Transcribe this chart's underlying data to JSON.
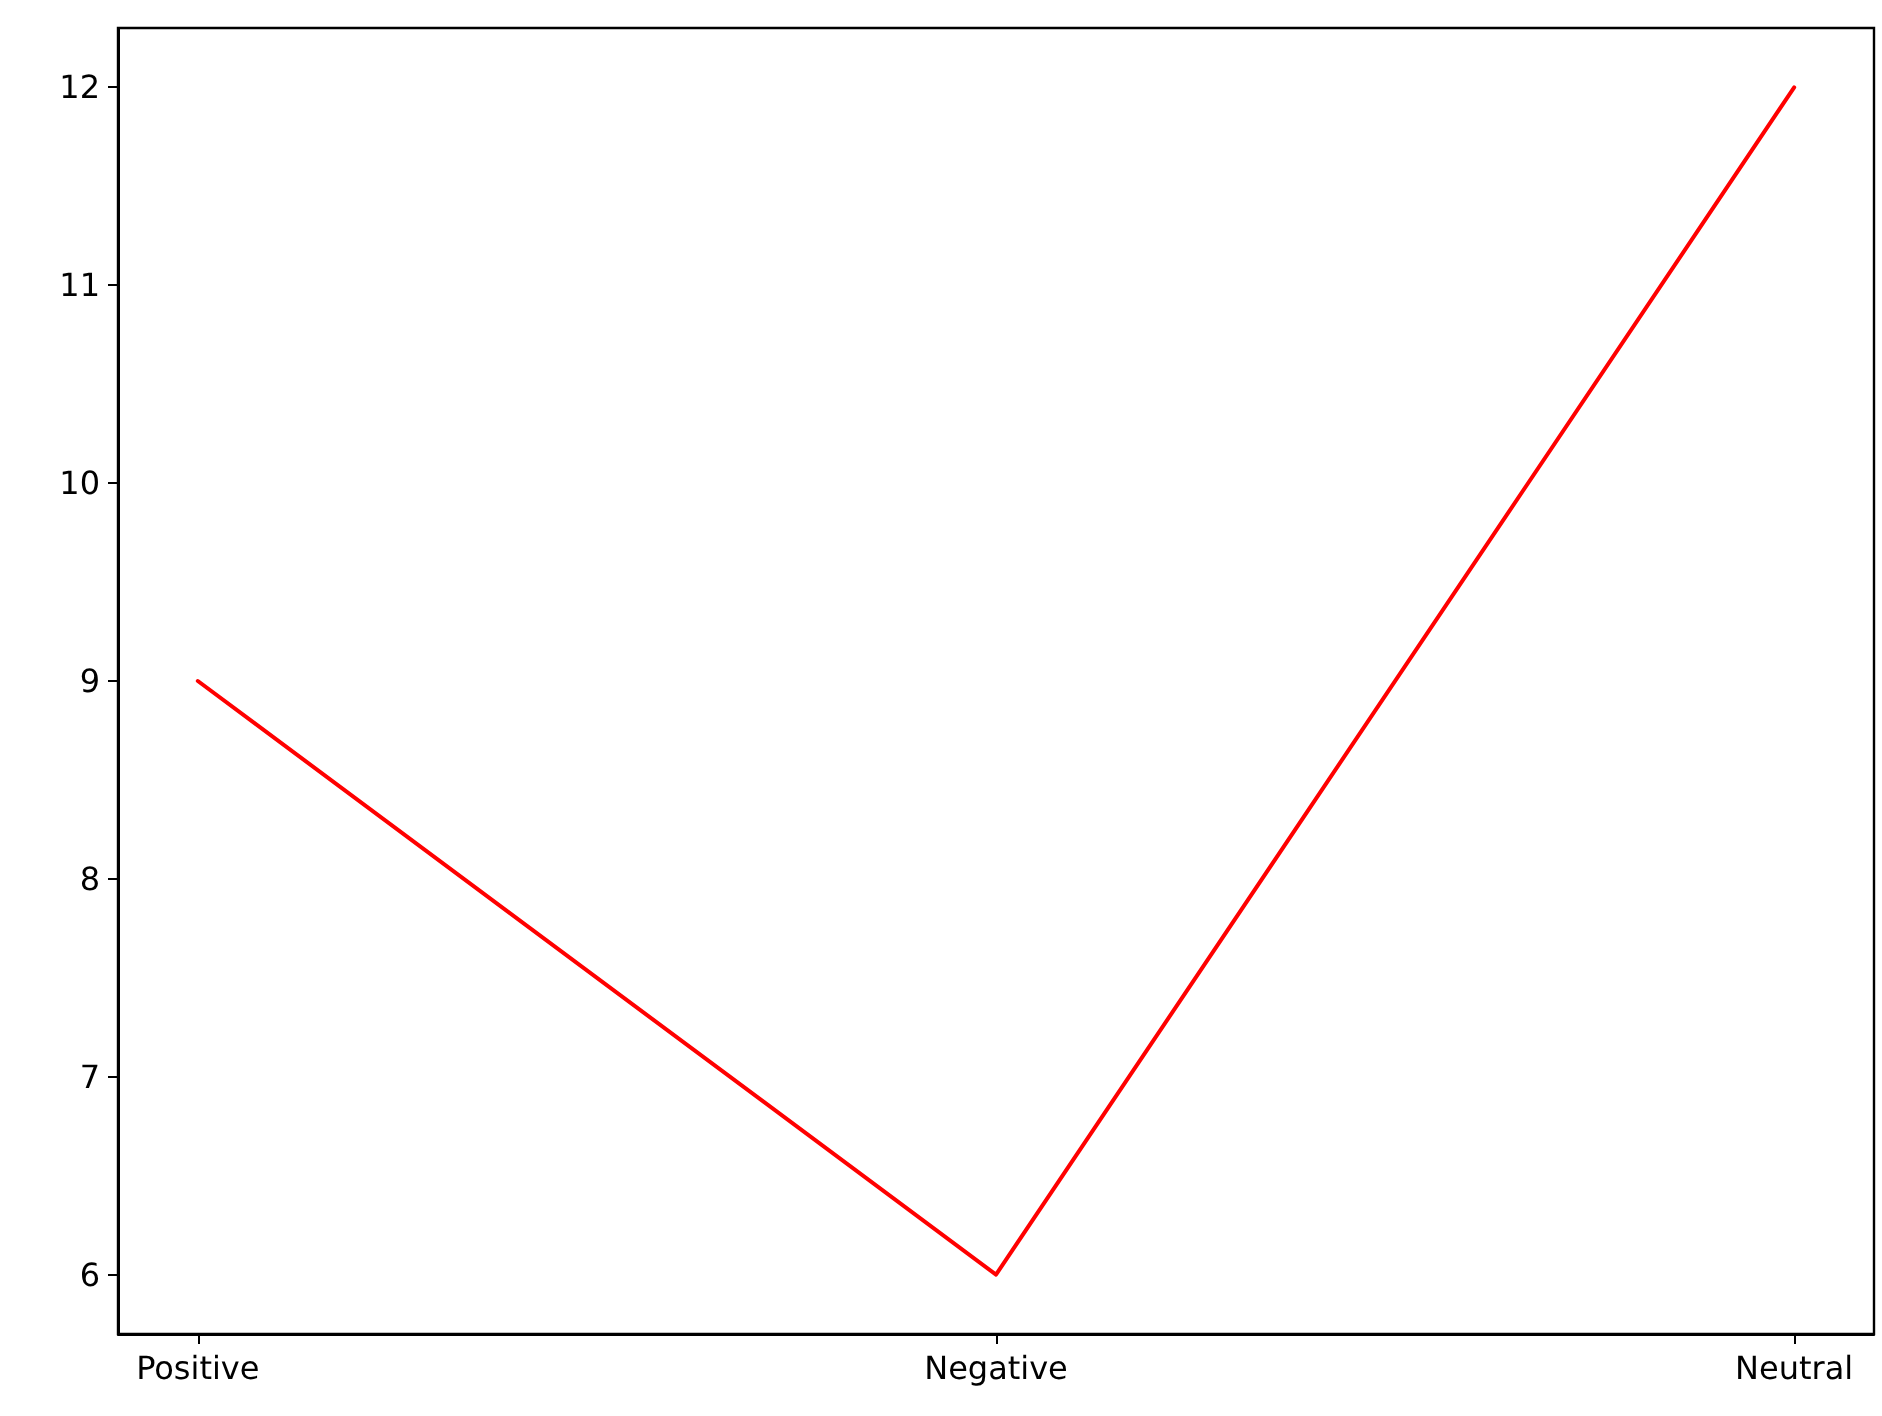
{
  "chart_data": {
    "type": "line",
    "categories": [
      "Positive",
      "Negative",
      "Neutral"
    ],
    "series": [
      {
        "color": "#ff0000",
        "values": [
          9,
          6,
          12
        ]
      }
    ],
    "ylim": [
      5.7,
      12.3
    ],
    "yticks": [
      6,
      7,
      8,
      9,
      10,
      11,
      12
    ],
    "grid": false,
    "marker": "none",
    "line_style": "solid"
  }
}
